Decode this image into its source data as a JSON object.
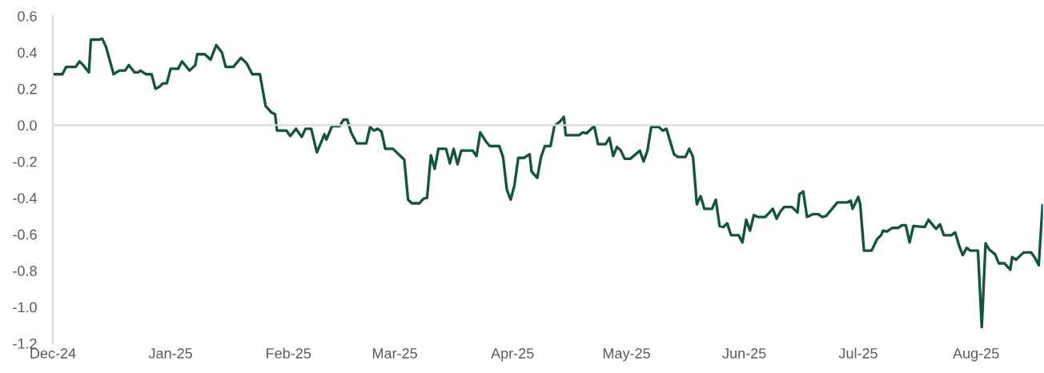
{
  "chart_data": {
    "type": "line",
    "x": [
      "2024-12-01",
      "2024-12-03T12:00",
      "2024-12-04T12:00",
      "2024-12-07",
      "2024-12-08",
      "2024-12-09",
      "2024-12-10T12:00",
      "2024-12-11",
      "2024-12-13",
      "2024-12-14",
      "2024-12-15",
      "2024-12-17",
      "2024-12-18T12:00",
      "2024-12-20",
      "2024-12-21",
      "2024-12-22T12:00",
      "2024-12-23T12:00",
      "2024-12-24",
      "2024-12-25T12:00",
      "2024-12-27",
      "2024-12-28",
      "2024-12-29",
      "2024-12-30",
      "2024-12-31",
      "2025-01-01",
      "2025-01-03",
      "2025-01-04",
      "2025-01-06",
      "2025-01-07T12:00",
      "2025-01-08",
      "2025-01-10",
      "2025-01-11T12:00",
      "2025-01-13",
      "2025-01-14T12:00",
      "2025-01-15T12:00",
      "2025-01-17T12:00",
      "2025-01-19T12:00",
      "2025-01-21",
      "2025-01-22T12:00",
      "2025-01-24T12:00",
      "2025-01-26",
      "2025-01-27T12:00",
      "2025-01-28T12:00",
      "2025-01-29",
      "2025-01-31T12:00",
      "2025-02-01T12:00",
      "2025-02-03",
      "2025-02-04T12:00",
      "2025-02-05T12:00",
      "2025-02-07",
      "2025-02-08T12:00",
      "2025-02-10T12:00",
      "2025-02-11",
      "2025-02-12T12:00",
      "2025-02-14T12:00",
      "2025-02-15T12:00",
      "2025-02-16T12:00",
      "2025-02-17T12:00",
      "2025-02-19",
      "2025-02-21T12:00",
      "2025-02-22T12:00",
      "2025-02-23T12:00",
      "2025-02-24T12:00",
      "2025-02-25T12:00",
      "2025-02-26T12:00",
      "2025-02-28T12:00",
      "2025-03-03T12:00",
      "2025-03-04T12:00",
      "2025-03-05T12:00",
      "2025-03-07T12:00",
      "2025-03-08T12:00",
      "2025-03-09T12:00",
      "2025-03-10T12:00",
      "2025-03-11T12:00",
      "2025-03-12T12:00",
      "2025-03-14T12:00",
      "2025-03-15T12:00",
      "2025-03-16T12:00",
      "2025-03-17T12:00",
      "2025-03-18T12:00",
      "2025-03-21T12:00",
      "2025-03-22T12:00",
      "2025-03-23T12:00",
      "2025-03-25",
      "2025-03-26",
      "2025-03-28T12:00",
      "2025-03-29T12:00",
      "2025-03-30T12:00",
      "2025-03-31T12:00",
      "2025-04-01T12:00",
      "2025-04-02T12:00",
      "2025-04-04",
      "2025-04-05T12:00",
      "2025-04-06",
      "2025-04-07T12:00",
      "2025-04-08T12:00",
      "2025-04-09T12:00",
      "2025-04-11",
      "2025-04-12",
      "2025-04-13T12:00",
      "2025-04-14T12:00",
      "2025-04-15",
      "2025-04-18T12:00",
      "2025-04-19T12:00",
      "2025-04-20T12:00",
      "2025-04-22T12:00",
      "2025-04-23T12:00",
      "2025-04-25T12:00",
      "2025-04-26T12:00",
      "2025-04-27T12:00",
      "2025-04-28T12:00",
      "2025-04-29T12:00",
      "2025-04-30T12:00",
      "2025-05-02",
      "2025-05-04T12:00",
      "2025-05-05T12:00",
      "2025-05-06T12:00",
      "2025-05-07T12:00",
      "2025-05-09T12:00",
      "2025-05-10T12:00",
      "2025-05-11T12:00",
      "2025-05-13T12:00",
      "2025-05-14T12:00",
      "2025-05-16T12:00",
      "2025-05-17T12:00",
      "2025-05-18T12:00",
      "2025-05-19T12:00",
      "2025-05-20T12:00",
      "2025-05-21T12:00",
      "2025-05-23T12:00",
      "2025-05-24T12:00",
      "2025-05-25T12:00",
      "2025-05-26T12:00",
      "2025-05-27T12:00",
      "2025-05-28T12:00",
      "2025-05-30T12:00",
      "2025-05-31T12:00",
      "2025-06-01T12:00",
      "2025-06-02T12:00",
      "2025-06-03T12:00",
      "2025-06-04T12:00",
      "2025-06-06T12:00",
      "2025-06-08T12:00",
      "2025-06-09T12:00",
      "2025-06-10T12:00",
      "2025-06-11T12:00",
      "2025-06-13T12:00",
      "2025-06-15",
      "2025-06-15T12:00",
      "2025-06-16T12:00",
      "2025-06-17T12:00",
      "2025-06-19",
      "2025-06-20T12:00",
      "2025-06-21T12:00",
      "2025-06-22T12:00",
      "2025-06-24T12:00",
      "2025-06-25T12:00",
      "2025-06-28",
      "2025-06-29",
      "2025-06-29T12:00",
      "2025-07-01",
      "2025-07-01T12:00",
      "2025-07-02T12:00",
      "2025-07-04T12:00",
      "2025-07-06",
      "2025-07-07",
      "2025-07-07T12:00",
      "2025-07-08T12:00",
      "2025-07-10",
      "2025-07-11T12:00",
      "2025-07-12T12:00",
      "2025-07-13T12:00",
      "2025-07-14T12:00",
      "2025-07-15T12:00",
      "2025-07-18T12:00",
      "2025-07-19T12:00",
      "2025-07-21",
      "2025-07-21T12:00",
      "2025-07-22T12:00",
      "2025-07-23T12:00",
      "2025-07-25T12:00",
      "2025-07-26T12:00",
      "2025-07-27T12:00",
      "2025-07-28T12:00",
      "2025-07-29T12:00",
      "2025-07-30T12:00",
      "2025-08-01T12:00",
      "2025-08-02T12:00",
      "2025-08-03T12:00",
      "2025-08-04T12:00",
      "2025-08-06",
      "2025-08-07",
      "2025-08-08T12:00",
      "2025-08-10",
      "2025-08-10T12:00",
      "2025-08-11T12:00",
      "2025-08-13T12:00",
      "2025-08-15T12:00",
      "2025-08-16T12:00",
      "2025-08-17T12:00",
      "2025-08-18T12:00"
    ],
    "series": [
      {
        "color": "#10553f",
        "values": [
          0.28,
          0.28,
          0.32,
          0.32,
          0.35,
          0.33,
          0.29,
          0.47,
          0.47,
          0.475,
          0.43,
          0.28,
          0.3,
          0.3,
          0.33,
          0.29,
          0.29,
          0.3,
          0.28,
          0.28,
          0.2,
          0.21,
          0.23,
          0.23,
          0.31,
          0.31,
          0.35,
          0.3,
          0.33,
          0.39,
          0.39,
          0.36,
          0.44,
          0.4,
          0.32,
          0.32,
          0.37,
          0.34,
          0.28,
          0.28,
          0.105,
          0.07,
          0.06,
          -0.03,
          -0.03,
          -0.06,
          -0.02,
          -0.065,
          -0.02,
          -0.02,
          -0.15,
          -0.05,
          -0.08,
          -0.005,
          -0.005,
          0.03,
          0.03,
          -0.04,
          -0.1,
          -0.1,
          -0.01,
          -0.03,
          -0.02,
          -0.035,
          -0.13,
          -0.13,
          -0.19,
          -0.41,
          -0.43,
          -0.43,
          -0.405,
          -0.4,
          -0.165,
          -0.24,
          -0.13,
          -0.13,
          -0.21,
          -0.13,
          -0.215,
          -0.14,
          -0.14,
          -0.17,
          -0.04,
          -0.09,
          -0.115,
          -0.115,
          -0.175,
          -0.355,
          -0.41,
          -0.33,
          -0.18,
          -0.18,
          -0.16,
          -0.255,
          -0.29,
          -0.175,
          -0.115,
          -0.115,
          -0.005,
          0.02,
          0.045,
          -0.055,
          -0.055,
          -0.04,
          -0.045,
          -0.005,
          -0.105,
          -0.105,
          -0.07,
          -0.17,
          -0.12,
          -0.14,
          -0.185,
          -0.185,
          -0.14,
          -0.2,
          -0.14,
          -0.01,
          -0.01,
          -0.03,
          -0.02,
          -0.16,
          -0.175,
          -0.175,
          -0.13,
          -0.175,
          -0.435,
          -0.39,
          -0.46,
          -0.46,
          -0.41,
          -0.555,
          -0.56,
          -0.54,
          -0.605,
          -0.605,
          -0.645,
          -0.52,
          -0.58,
          -0.495,
          -0.505,
          -0.505,
          -0.46,
          -0.515,
          -0.475,
          -0.45,
          -0.45,
          -0.48,
          -0.38,
          -0.365,
          -0.505,
          -0.49,
          -0.49,
          -0.505,
          -0.5,
          -0.45,
          -0.425,
          -0.425,
          -0.415,
          -0.46,
          -0.395,
          -0.435,
          -0.69,
          -0.69,
          -0.625,
          -0.605,
          -0.58,
          -0.585,
          -0.565,
          -0.565,
          -0.55,
          -0.55,
          -0.645,
          -0.555,
          -0.56,
          -0.52,
          -0.56,
          -0.57,
          -0.545,
          -0.605,
          -0.605,
          -0.59,
          -0.66,
          -0.715,
          -0.675,
          -0.69,
          -0.69,
          -1.11,
          -0.65,
          -0.685,
          -0.71,
          -0.76,
          -0.76,
          -0.795,
          -0.725,
          -0.74,
          -0.7,
          -0.7,
          -0.73,
          -0.77,
          -0.44
        ]
      }
    ],
    "xlim": [
      "2024-12-01",
      "2025-08-18T14:30"
    ],
    "xticks": [
      {
        "value": "2024-12-01",
        "label": "Dec-24"
      },
      {
        "value": "2025-01-01",
        "label": "Jan-25"
      },
      {
        "value": "2025-02-01",
        "label": "Feb-25"
      },
      {
        "value": "2025-03-01",
        "label": "Mar-25"
      },
      {
        "value": "2025-04-01",
        "label": "Apr-25"
      },
      {
        "value": "2025-05-01",
        "label": "May-25"
      },
      {
        "value": "2025-06-01",
        "label": "Jun-25"
      },
      {
        "value": "2025-07-01",
        "label": "Jul-25"
      },
      {
        "value": "2025-08-01",
        "label": "Aug-25"
      }
    ],
    "ylim": [
      -1.2,
      0.6
    ],
    "yticks": [
      {
        "value": -1.2,
        "label": "-1.2"
      },
      {
        "value": -1.0,
        "label": "-1.0"
      },
      {
        "value": -0.8,
        "label": "-0.8"
      },
      {
        "value": -0.6,
        "label": "-0.6"
      },
      {
        "value": -0.4,
        "label": "-0.4"
      },
      {
        "value": -0.2,
        "label": "-0.2"
      },
      {
        "value": 0.0,
        "label": "0.0"
      },
      {
        "value": 0.2,
        "label": "0.2"
      },
      {
        "value": 0.4,
        "label": "0.4"
      },
      {
        "value": 0.6,
        "label": "0.6"
      }
    ]
  }
}
